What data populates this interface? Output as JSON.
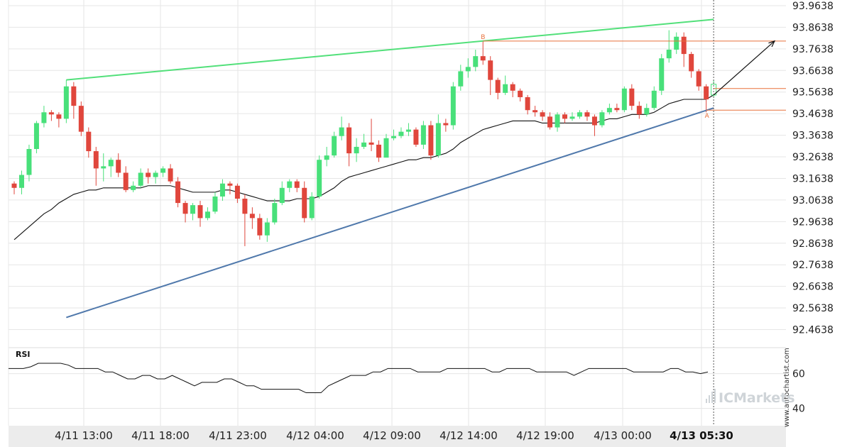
{
  "chart_data": {
    "type": "candlestick",
    "price_axis": {
      "ticks": [
        "93.9638",
        "93.8638",
        "93.7638",
        "93.6638",
        "93.5638",
        "93.4638",
        "93.3638",
        "93.2638",
        "93.1638",
        "93.0638",
        "92.9638",
        "92.8638",
        "92.7638",
        "92.6638",
        "92.5638",
        "92.4638"
      ],
      "range": [
        92.38,
        93.99
      ]
    },
    "time_axis": {
      "ticks": [
        "4/11 13:00",
        "4/11 18:00",
        "4/11 23:00",
        "4/12 04:00",
        "4/12 09:00",
        "4/12 14:00",
        "4/12 19:00",
        "4/13 00:00",
        "4/13 05:30"
      ],
      "highlighted": "4/13 05:30"
    },
    "candles": [
      [
        93.14,
        93.12,
        93.15,
        93.09
      ],
      [
        93.12,
        93.18,
        93.2,
        93.09
      ],
      [
        93.18,
        93.3,
        93.32,
        93.15
      ],
      [
        93.3,
        93.42,
        93.43,
        93.28
      ],
      [
        93.42,
        93.47,
        93.5,
        93.4
      ],
      [
        93.47,
        93.46,
        93.48,
        93.43
      ],
      [
        93.46,
        93.44,
        93.47,
        93.4
      ],
      [
        93.44,
        93.59,
        93.62,
        93.42
      ],
      [
        93.59,
        93.5,
        93.61,
        93.44
      ],
      [
        93.5,
        93.38,
        93.52,
        93.36
      ],
      [
        93.38,
        93.29,
        93.4,
        93.26
      ],
      [
        93.29,
        93.21,
        93.31,
        93.13
      ],
      [
        93.21,
        93.22,
        93.28,
        93.15
      ],
      [
        93.22,
        93.25,
        93.26,
        93.17
      ],
      [
        93.25,
        93.19,
        93.28,
        93.17
      ],
      [
        93.19,
        93.11,
        93.22,
        93.1
      ],
      [
        93.11,
        93.13,
        93.15,
        93.1
      ],
      [
        93.13,
        93.19,
        93.21,
        93.12
      ],
      [
        93.19,
        93.17,
        93.21,
        93.14
      ],
      [
        93.17,
        93.19,
        93.2,
        93.14
      ],
      [
        93.19,
        93.21,
        93.22,
        93.17
      ],
      [
        93.21,
        93.15,
        93.23,
        93.14
      ],
      [
        93.15,
        93.05,
        93.17,
        93.03
      ],
      [
        93.05,
        93.0,
        93.06,
        92.96
      ],
      [
        93.0,
        93.04,
        93.05,
        92.97
      ],
      [
        93.04,
        92.98,
        93.06,
        92.94
      ],
      [
        92.98,
        93.01,
        93.03,
        92.97
      ],
      [
        93.01,
        93.08,
        93.1,
        93.0
      ],
      [
        93.08,
        93.14,
        93.16,
        93.06
      ],
      [
        93.14,
        93.13,
        93.15,
        93.09
      ],
      [
        93.13,
        93.07,
        93.14,
        93.05
      ],
      [
        93.07,
        93.0,
        93.09,
        92.85
      ],
      [
        93.0,
        92.98,
        93.03,
        92.93
      ],
      [
        92.98,
        92.9,
        93.0,
        92.88
      ],
      [
        92.9,
        92.96,
        92.98,
        92.87
      ],
      [
        92.96,
        93.05,
        93.07,
        92.95
      ],
      [
        93.05,
        93.12,
        93.15,
        93.04
      ],
      [
        93.12,
        93.15,
        93.16,
        93.1
      ],
      [
        93.15,
        93.12,
        93.16,
        93.1
      ],
      [
        93.12,
        92.98,
        93.15,
        92.96
      ],
      [
        92.98,
        93.08,
        93.1,
        92.97
      ],
      [
        93.08,
        93.25,
        93.27,
        93.07
      ],
      [
        93.25,
        93.27,
        93.31,
        93.22
      ],
      [
        93.27,
        93.36,
        93.38,
        93.26
      ],
      [
        93.36,
        93.4,
        93.45,
        93.34
      ],
      [
        93.4,
        93.28,
        93.42,
        93.22
      ],
      [
        93.28,
        93.31,
        93.35,
        93.24
      ],
      [
        93.31,
        93.33,
        93.37,
        93.3
      ],
      [
        93.33,
        93.32,
        93.44,
        93.29
      ],
      [
        93.32,
        93.26,
        93.34,
        93.24
      ],
      [
        93.26,
        93.35,
        93.37,
        93.33
      ],
      [
        93.35,
        93.36,
        93.39,
        93.34
      ],
      [
        93.36,
        93.38,
        93.4,
        93.35
      ],
      [
        93.38,
        93.39,
        93.42,
        93.36
      ],
      [
        93.39,
        93.32,
        93.4,
        93.31
      ],
      [
        93.32,
        93.41,
        93.43,
        93.3
      ],
      [
        93.41,
        93.27,
        93.43,
        93.25
      ],
      [
        93.27,
        93.42,
        93.46,
        93.26
      ],
      [
        93.42,
        93.41,
        93.44,
        93.38
      ],
      [
        93.41,
        93.59,
        93.61,
        93.39
      ],
      [
        93.59,
        93.66,
        93.69,
        93.57
      ],
      [
        93.66,
        93.68,
        93.72,
        93.63
      ],
      [
        93.68,
        93.73,
        93.76,
        93.66
      ],
      [
        93.73,
        93.71,
        93.8,
        93.69
      ],
      [
        93.71,
        93.62,
        93.73,
        93.55
      ],
      [
        93.62,
        93.56,
        93.63,
        93.53
      ],
      [
        93.56,
        93.6,
        93.64,
        93.55
      ],
      [
        93.6,
        93.57,
        93.61,
        93.54
      ],
      [
        93.57,
        93.54,
        93.58,
        93.52
      ],
      [
        93.54,
        93.48,
        93.55,
        93.46
      ],
      [
        93.48,
        93.47,
        93.5,
        93.45
      ],
      [
        93.47,
        93.45,
        93.48,
        93.43
      ],
      [
        93.45,
        93.4,
        93.47,
        93.39
      ],
      [
        93.4,
        93.46,
        93.47,
        93.38
      ],
      [
        93.46,
        93.44,
        93.47,
        93.42
      ],
      [
        93.44,
        93.45,
        93.47,
        93.43
      ],
      [
        93.45,
        93.47,
        93.48,
        93.44
      ],
      [
        93.47,
        93.45,
        93.48,
        93.43
      ],
      [
        93.45,
        93.41,
        93.46,
        93.36
      ],
      [
        93.41,
        93.47,
        93.48,
        93.4
      ],
      [
        93.47,
        93.49,
        93.51,
        93.46
      ],
      [
        93.49,
        93.48,
        93.51,
        93.47
      ],
      [
        93.48,
        93.58,
        93.59,
        93.47
      ],
      [
        93.58,
        93.5,
        93.6,
        93.48
      ],
      [
        93.5,
        93.46,
        93.52,
        93.44
      ],
      [
        93.46,
        93.49,
        93.51,
        93.45
      ],
      [
        93.49,
        93.57,
        93.59,
        93.48
      ],
      [
        93.57,
        93.72,
        93.74,
        93.55
      ],
      [
        93.72,
        93.76,
        93.85,
        93.7
      ],
      [
        93.76,
        93.82,
        93.84,
        93.74
      ],
      [
        93.82,
        93.74,
        93.84,
        93.68
      ],
      [
        93.74,
        93.66,
        93.75,
        93.63
      ],
      [
        93.66,
        93.59,
        93.67,
        93.57
      ],
      [
        93.59,
        93.53,
        93.6,
        93.47
      ],
      [
        93.55,
        93.6,
        93.62,
        93.54
      ]
    ],
    "candle_fields": [
      "open",
      "close",
      "high",
      "low"
    ],
    "moving_average": [
      92.88,
      92.91,
      92.94,
      92.97,
      93.0,
      93.02,
      93.05,
      93.07,
      93.09,
      93.1,
      93.11,
      93.11,
      93.12,
      93.12,
      93.12,
      93.12,
      93.12,
      93.12,
      93.13,
      93.13,
      93.13,
      93.13,
      93.12,
      93.11,
      93.1,
      93.1,
      93.1,
      93.1,
      93.11,
      93.11,
      93.1,
      93.09,
      93.08,
      93.07,
      93.06,
      93.06,
      93.06,
      93.06,
      93.07,
      93.07,
      93.07,
      93.08,
      93.1,
      93.12,
      93.15,
      93.17,
      93.18,
      93.19,
      93.2,
      93.21,
      93.22,
      93.23,
      93.24,
      93.25,
      93.25,
      93.26,
      93.26,
      93.27,
      93.28,
      93.3,
      93.33,
      93.35,
      93.37,
      93.39,
      93.4,
      93.41,
      93.42,
      93.43,
      93.43,
      93.43,
      93.43,
      93.42,
      93.42,
      93.42,
      93.42,
      93.42,
      93.42,
      93.42,
      93.42,
      93.43,
      93.44,
      93.44,
      93.45,
      93.46,
      93.46,
      93.46,
      93.47,
      93.49,
      93.51,
      93.52,
      93.53,
      93.53,
      93.53,
      93.53,
      93.55
    ],
    "annotations": {
      "resistance_line": {
        "start": [
          7,
          93.62
        ],
        "end": [
          94,
          93.9
        ]
      },
      "support_line": {
        "start": [
          7,
          92.52
        ],
        "end": [
          94,
          93.49
        ]
      },
      "level_B": {
        "label": "B",
        "price": 93.8,
        "index": 63
      },
      "level_A": {
        "label": "A",
        "price": 93.48,
        "index": 93
      },
      "level_current": 93.58,
      "arrow": {
        "start": [
          94,
          93.55
        ],
        "end": [
          102,
          93.8
        ]
      },
      "cursor_index": 94
    },
    "rsi": {
      "label": "RSI",
      "ticks": [
        "60",
        "40"
      ],
      "range": [
        30,
        75
      ],
      "values": [
        63,
        63,
        63,
        64,
        66,
        66,
        66,
        66,
        65,
        63,
        63,
        63,
        63,
        61,
        61,
        59,
        57,
        57,
        59,
        59,
        57,
        57,
        59,
        57,
        55,
        53,
        55,
        55,
        55,
        57,
        57,
        55,
        53,
        53,
        51,
        51,
        51,
        51,
        51,
        51,
        49,
        49,
        49,
        53,
        55,
        57,
        59,
        59,
        59,
        61,
        61,
        63,
        63,
        63,
        63,
        61,
        61,
        61,
        61,
        63,
        63,
        63,
        63,
        63,
        63,
        61,
        61,
        63,
        63,
        63,
        63,
        61,
        61,
        61,
        61,
        61,
        59,
        61,
        63,
        63,
        63,
        63,
        63,
        63,
        61,
        61,
        61,
        61,
        61,
        63,
        63,
        61,
        61,
        60,
        61
      ]
    },
    "watermark": {
      "vertical": "www.autochartist.com",
      "brand": "ICMarkets"
    },
    "colors": {
      "up": "#48e07a",
      "down": "#e0463c",
      "resistance": "#52e07a",
      "support": "#4f78ab",
      "level": "#e8703a",
      "ma": "#111111",
      "rsi": "#111111",
      "grid": "#e6e6e6",
      "axis_bg": "#ececec"
    }
  }
}
